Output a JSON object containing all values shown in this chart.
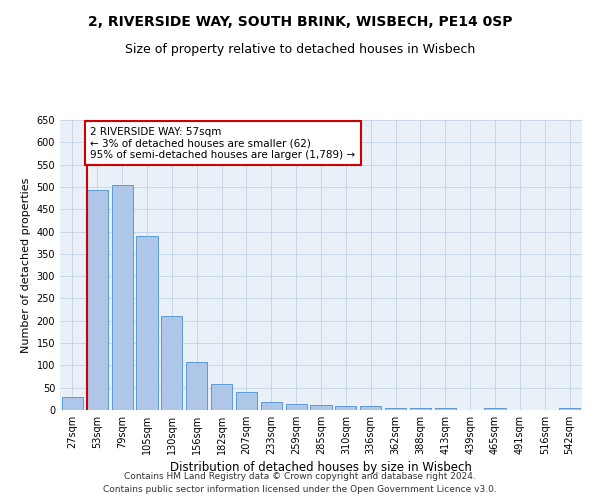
{
  "title1": "2, RIVERSIDE WAY, SOUTH BRINK, WISBECH, PE14 0SP",
  "title2": "Size of property relative to detached houses in Wisbech",
  "xlabel": "Distribution of detached houses by size in Wisbech",
  "ylabel": "Number of detached properties",
  "categories": [
    "27sqm",
    "53sqm",
    "79sqm",
    "105sqm",
    "130sqm",
    "156sqm",
    "182sqm",
    "207sqm",
    "233sqm",
    "259sqm",
    "285sqm",
    "310sqm",
    "336sqm",
    "362sqm",
    "388sqm",
    "413sqm",
    "439sqm",
    "465sqm",
    "491sqm",
    "516sqm",
    "542sqm"
  ],
  "values": [
    30,
    493,
    505,
    390,
    210,
    107,
    58,
    40,
    17,
    13,
    12,
    10,
    9,
    4,
    4,
    4,
    1,
    4,
    1,
    1,
    4
  ],
  "bar_color": "#aec6e8",
  "bar_edge_color": "#5b9bd5",
  "vline_color": "#cc0000",
  "annotation_text": "2 RIVERSIDE WAY: 57sqm\n← 3% of detached houses are smaller (62)\n95% of semi-detached houses are larger (1,789) →",
  "annotation_box_color": "#ffffff",
  "annotation_box_edge_color": "#cc0000",
  "ylim": [
    0,
    650
  ],
  "yticks": [
    0,
    50,
    100,
    150,
    200,
    250,
    300,
    350,
    400,
    450,
    500,
    550,
    600,
    650
  ],
  "grid_color": "#c8d8e8",
  "background_color": "#eaf0f8",
  "footer1": "Contains HM Land Registry data © Crown copyright and database right 2024.",
  "footer2": "Contains public sector information licensed under the Open Government Licence v3.0.",
  "title1_fontsize": 10,
  "title2_fontsize": 9,
  "xlabel_fontsize": 8.5,
  "ylabel_fontsize": 8,
  "tick_fontsize": 7,
  "annotation_fontsize": 7.5,
  "footer_fontsize": 6.5
}
